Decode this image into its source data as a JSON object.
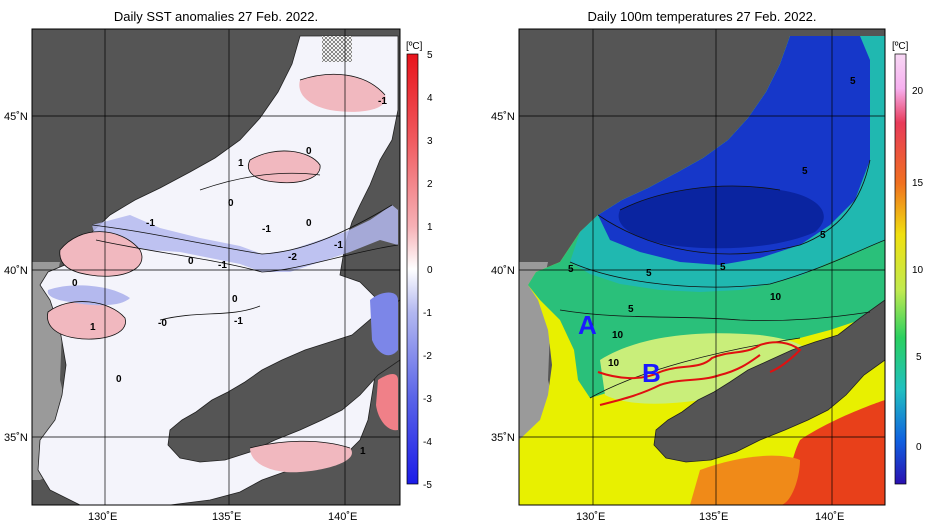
{
  "left_panel": {
    "title": "Daily SST anomalies 27 Feb. 2022.",
    "colorbar_unit": "[ºC]",
    "colorbar_ticks": [
      "5",
      "4",
      "3",
      "2",
      "1",
      "0",
      "-1",
      "-2",
      "-3",
      "-4",
      "-5"
    ],
    "lat_labels": [
      "45˚N",
      "40˚N",
      "35˚N"
    ],
    "lon_labels": [
      "130˚E",
      "135˚E",
      "140˚E"
    ],
    "contour_labels": [
      "-1",
      "1",
      "0",
      "-1",
      "0",
      "-1",
      "0",
      "-2",
      "-1",
      "-1",
      "0",
      "0",
      "0",
      "-1",
      "1",
      "-0",
      "0",
      "1"
    ],
    "colors": {
      "land": "#555555",
      "nodata": "#9a9a9a",
      "neutral": "#f4f4fb",
      "neg": "#b4b9ee",
      "pos": "#f1b8bf"
    }
  },
  "right_panel": {
    "title": "Daily 100m temperatures 27 Feb. 2022.",
    "colorbar_unit": "[ºC]",
    "colorbar_ticks": [
      "20",
      "15",
      "10",
      "5",
      "0"
    ],
    "lat_labels": [
      "45˚N",
      "40˚N",
      "35˚N"
    ],
    "lon_labels": [
      "130˚E",
      "135˚E",
      "140˚E"
    ],
    "contour_labels": [
      "5",
      "5",
      "5",
      "5",
      "5",
      "5",
      "5",
      "10",
      "10",
      "10"
    ],
    "annotations": [
      "A",
      "B"
    ],
    "colors": {
      "land": "#555555",
      "cold": "#1637c9",
      "mid": "#2ac07a",
      "warm": "#c9ee7a",
      "hot": "#e8f000",
      "red_line": "#e01010"
    }
  }
}
